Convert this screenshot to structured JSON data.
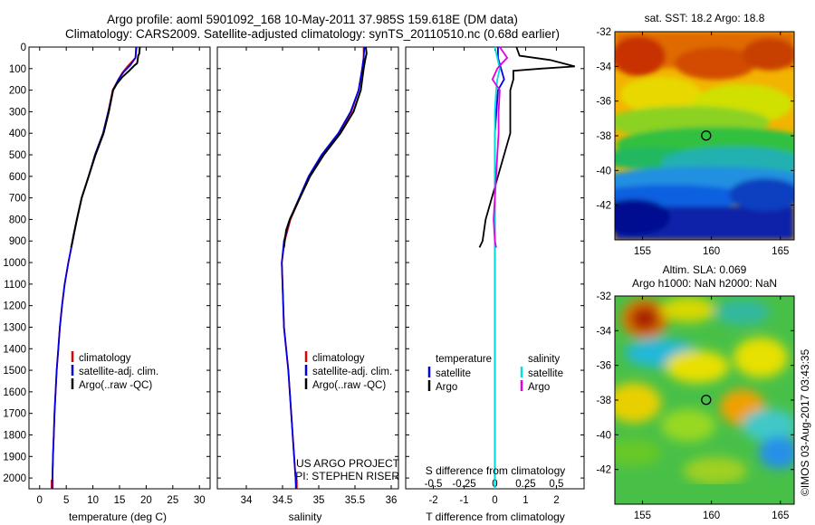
{
  "titles": {
    "line1": "Argo profile: aoml 5901092_168 10-May-2011 37.985S 159.618E (DM data)",
    "line2": "Climatology: CARS2009. Satellite-adjusted climatology: synTS_20110510.nc (0.68d earlier)"
  },
  "colors": {
    "climatology": "#e00000",
    "satellite_temperature": "#0000e0",
    "argo": "#000000",
    "satellite_salinity": "#00e0e0",
    "argo_salinity": "#e000e0"
  },
  "chart_data": [
    {
      "type": "line",
      "panel": "temperature",
      "xlabel": "temperature (deg C)",
      "ylabel": "",
      "xlim": [
        -2,
        32
      ],
      "ylim": [
        2050,
        0
      ],
      "xticks": [
        "0",
        "5",
        "10",
        "15",
        "20",
        "25",
        "30"
      ],
      "xtick_values": [
        0,
        5,
        10,
        15,
        20,
        25,
        30
      ],
      "yticks": [
        "0",
        "100",
        "200",
        "300",
        "400",
        "500",
        "600",
        "700",
        "800",
        "900",
        "1000",
        "1100",
        "1200",
        "1300",
        "1400",
        "1500",
        "1600",
        "1700",
        "1800",
        "1900",
        "2000"
      ],
      "ytick_values": [
        0,
        100,
        200,
        300,
        400,
        500,
        600,
        700,
        800,
        900,
        1000,
        1100,
        1200,
        1300,
        1400,
        1500,
        1600,
        1700,
        1800,
        1900,
        2000
      ],
      "legend": [
        "climatology",
        "satellite-adj. clim.",
        "Argo(..raw -QC)"
      ],
      "series": [
        {
          "name": "climatology",
          "color_key": "climatology",
          "points": [
            [
              18.1,
              0
            ],
            [
              18.0,
              50
            ],
            [
              16.5,
              90
            ],
            [
              15.5,
              120
            ],
            [
              14.8,
              150
            ],
            [
              13.7,
              200
            ],
            [
              12.9,
              300
            ],
            [
              11.9,
              400
            ],
            [
              10.4,
              500
            ],
            [
              9.2,
              600
            ],
            [
              7.9,
              700
            ],
            [
              7.0,
              800
            ],
            [
              6.2,
              900
            ],
            [
              5.4,
              1000
            ],
            [
              4.7,
              1100
            ],
            [
              4.2,
              1200
            ],
            [
              3.8,
              1300
            ],
            [
              3.5,
              1400
            ],
            [
              3.2,
              1500
            ],
            [
              3.0,
              1600
            ],
            [
              2.8,
              1700
            ],
            [
              2.65,
              1800
            ],
            [
              2.5,
              1900
            ],
            [
              2.4,
              2000
            ],
            [
              2.35,
              2050
            ]
          ]
        },
        {
          "name": "satellite-adj. clim.",
          "color_key": "satellite_temperature",
          "points": [
            [
              18.2,
              0
            ],
            [
              18.0,
              50
            ],
            [
              17.0,
              85
            ],
            [
              15.8,
              115
            ],
            [
              14.8,
              150
            ],
            [
              13.8,
              200
            ],
            [
              12.9,
              300
            ],
            [
              11.9,
              400
            ],
            [
              10.4,
              500
            ],
            [
              9.2,
              600
            ],
            [
              7.9,
              700
            ],
            [
              7.0,
              800
            ],
            [
              6.2,
              900
            ],
            [
              5.4,
              1000
            ],
            [
              4.7,
              1100
            ],
            [
              4.2,
              1200
            ],
            [
              3.8,
              1300
            ],
            [
              3.5,
              1400
            ],
            [
              3.2,
              1500
            ],
            [
              3.0,
              1600
            ],
            [
              2.8,
              1700
            ],
            [
              2.65,
              1800
            ],
            [
              2.5,
              1900
            ],
            [
              2.4,
              2000
            ],
            [
              2.35,
              2050
            ]
          ]
        },
        {
          "name": "Argo(..raw -QC)",
          "color_key": "argo",
          "points": [
            [
              18.8,
              0
            ],
            [
              18.7,
              30
            ],
            [
              18.5,
              40
            ],
            [
              18.4,
              60
            ],
            [
              18.3,
              75
            ],
            [
              17.8,
              85
            ],
            [
              16.8,
              110
            ],
            [
              15.5,
              140
            ],
            [
              14.5,
              170
            ],
            [
              13.8,
              200
            ],
            [
              13.0,
              300
            ],
            [
              12.0,
              400
            ],
            [
              10.5,
              500
            ],
            [
              9.2,
              600
            ],
            [
              7.9,
              700
            ],
            [
              7.0,
              800
            ],
            [
              6.4,
              870
            ],
            [
              6.0,
              920
            ],
            [
              5.9,
              930
            ]
          ]
        }
      ]
    },
    {
      "type": "line",
      "panel": "salinity",
      "xlabel": "salinity",
      "ylabel": "",
      "xlim": [
        33.6,
        36.1
      ],
      "ylim": [
        2050,
        0
      ],
      "xticks": [
        "34",
        "34.5",
        "35",
        "35.5",
        "36"
      ],
      "xtick_values": [
        34,
        34.5,
        35,
        35.5,
        36
      ],
      "legend": [
        "climatology",
        "satellite-adj. clim.",
        "Argo(..raw -QC)"
      ],
      "annotation": [
        "US ARGO PROJECT",
        "PI: STEPHEN RISER"
      ],
      "series": [
        {
          "name": "climatology",
          "color_key": "climatology",
          "points": [
            [
              35.62,
              0
            ],
            [
              35.62,
              50
            ],
            [
              35.6,
              100
            ],
            [
              35.55,
              200
            ],
            [
              35.45,
              300
            ],
            [
              35.28,
              400
            ],
            [
              35.05,
              500
            ],
            [
              34.87,
              600
            ],
            [
              34.74,
              700
            ],
            [
              34.61,
              800
            ],
            [
              34.53,
              900
            ],
            [
              34.49,
              1000
            ],
            [
              34.5,
              1100
            ],
            [
              34.51,
              1200
            ],
            [
              34.52,
              1300
            ],
            [
              34.55,
              1400
            ],
            [
              34.58,
              1500
            ],
            [
              34.6,
              1600
            ],
            [
              34.62,
              1700
            ],
            [
              34.64,
              1800
            ],
            [
              34.66,
              1900
            ],
            [
              34.68,
              2000
            ],
            [
              34.69,
              2050
            ]
          ]
        },
        {
          "name": "satellite-adj. clim.",
          "color_key": "satellite_temperature",
          "points": [
            [
              35.63,
              0
            ],
            [
              35.62,
              50
            ],
            [
              35.6,
              100
            ],
            [
              35.55,
              200
            ],
            [
              35.44,
              300
            ],
            [
              35.27,
              400
            ],
            [
              35.04,
              500
            ],
            [
              34.86,
              600
            ],
            [
              34.73,
              700
            ],
            [
              34.6,
              800
            ],
            [
              34.52,
              900
            ],
            [
              34.49,
              1000
            ],
            [
              34.5,
              1100
            ],
            [
              34.51,
              1200
            ],
            [
              34.52,
              1300
            ],
            [
              34.55,
              1400
            ],
            [
              34.58,
              1500
            ],
            [
              34.6,
              1600
            ],
            [
              34.62,
              1700
            ],
            [
              34.64,
              1800
            ],
            [
              34.66,
              1900
            ],
            [
              34.68,
              2000
            ],
            [
              34.69,
              2050
            ]
          ]
        },
        {
          "name": "Argo(..raw -QC)",
          "color_key": "argo",
          "points": [
            [
              35.65,
              0
            ],
            [
              35.66,
              30
            ],
            [
              35.64,
              60
            ],
            [
              35.62,
              100
            ],
            [
              35.58,
              200
            ],
            [
              35.48,
              300
            ],
            [
              35.3,
              400
            ],
            [
              35.07,
              500
            ],
            [
              34.88,
              600
            ],
            [
              34.74,
              700
            ],
            [
              34.6,
              800
            ],
            [
              34.55,
              850
            ],
            [
              34.53,
              900
            ],
            [
              34.52,
              930
            ]
          ]
        }
      ]
    },
    {
      "type": "line",
      "panel": "differences",
      "xlabel": "T difference from climatology",
      "xlabel_top": "S difference from climatology",
      "xlim": [
        -2.9,
        2.9
      ],
      "ylim": [
        2050,
        0
      ],
      "xticks": [
        "-2",
        "-1",
        "0",
        "1",
        "2"
      ],
      "xtick_values": [
        -2,
        -1,
        0,
        1,
        2
      ],
      "s_ticks": [
        "-0.5",
        "-0.25",
        "0",
        "0.25",
        "0.5"
      ],
      "s_tick_values": [
        -0.5,
        -0.25,
        0,
        0.25,
        0.5
      ],
      "s_scale": 4,
      "legend_headers": [
        "temperature",
        "salinity"
      ],
      "legend": [
        "satellite",
        "Argo",
        "satellite",
        "Argo"
      ],
      "series": [
        {
          "name": "satellite",
          "variable": "temperature",
          "color_key": "satellite_temperature",
          "points": [
            [
              0.1,
              0
            ],
            [
              0.1,
              50
            ],
            [
              0.2,
              100
            ],
            [
              0.3,
              150
            ],
            [
              0.1,
              200
            ],
            [
              0.05,
              300
            ],
            [
              0,
              400
            ],
            [
              0,
              600
            ],
            [
              0,
              800
            ],
            [
              0,
              1000
            ],
            [
              0,
              1500
            ],
            [
              0,
              2050
            ]
          ]
        },
        {
          "name": "Argo",
          "variable": "temperature",
          "color_key": "argo",
          "points": [
            [
              0.7,
              0
            ],
            [
              0.8,
              40
            ],
            [
              1.8,
              60
            ],
            [
              2.6,
              90
            ],
            [
              1.5,
              100
            ],
            [
              0.6,
              110
            ],
            [
              0.6,
              140
            ],
            [
              0.6,
              150
            ],
            [
              0.5,
              200
            ],
            [
              0.5,
              300
            ],
            [
              0.5,
              400
            ],
            [
              0.3,
              500
            ],
            [
              0.1,
              600
            ],
            [
              -0.1,
              700
            ],
            [
              -0.3,
              800
            ],
            [
              -0.4,
              900
            ],
            [
              -0.5,
              930
            ]
          ]
        },
        {
          "name": "satellite",
          "variable": "salinity",
          "color_key": "satellite_salinity",
          "points": [
            [
              0.0,
              0
            ],
            [
              0.02,
              50
            ],
            [
              0.04,
              100
            ],
            [
              0.02,
              150
            ],
            [
              0.01,
              200
            ],
            [
              0,
              300
            ],
            [
              0,
              500
            ],
            [
              0,
              800
            ],
            [
              0,
              1000
            ],
            [
              0,
              1500
            ],
            [
              0,
              2050
            ]
          ]
        },
        {
          "name": "Argo",
          "variable": "salinity",
          "color_key": "argo_salinity",
          "points": [
            [
              0.04,
              0
            ],
            [
              0.1,
              50
            ],
            [
              0.05,
              80
            ],
            [
              0.02,
              100
            ],
            [
              -0.02,
              150
            ],
            [
              0.04,
              200
            ],
            [
              0.03,
              300
            ],
            [
              0.03,
              400
            ],
            [
              0.02,
              500
            ],
            [
              0.01,
              600
            ],
            [
              0.0,
              700
            ],
            [
              -0.01,
              800
            ],
            [
              0.0,
              900
            ],
            [
              0.01,
              930
            ]
          ]
        }
      ]
    },
    {
      "type": "heatmap",
      "panel": "sst-map",
      "title": "sat. SST: 18.2 Argo: 18.8",
      "xticks": [
        "155",
        "160",
        "165"
      ],
      "xtick_values": [
        155,
        160,
        165
      ],
      "yticks": [
        "-32",
        "-34",
        "-36",
        "-38",
        "-40",
        "-42"
      ],
      "ytick_values": [
        -32,
        -34,
        -36,
        -38,
        -40,
        -42
      ],
      "xlim": [
        153,
        166
      ],
      "ylim": [
        -44,
        -32
      ],
      "marker": [
        159.618,
        -37.985
      ]
    },
    {
      "type": "heatmap",
      "panel": "sla-map",
      "title_lines": [
        "Altim. SLA: 0.069",
        "Argo h1000: NaN h2000: NaN"
      ],
      "xticks": [
        "155",
        "160",
        "165"
      ],
      "xtick_values": [
        155,
        160,
        165
      ],
      "yticks": [
        "-32",
        "-34",
        "-36",
        "-38",
        "-40",
        "-42"
      ],
      "ytick_values": [
        -32,
        -34,
        -36,
        -38,
        -40,
        -42
      ],
      "xlim": [
        153,
        166
      ],
      "ylim": [
        -44,
        -32
      ],
      "marker": [
        159.618,
        -37.985
      ]
    }
  ],
  "footer": {
    "credit": "©IMOS 03-Aug-2017 03:43:35"
  }
}
